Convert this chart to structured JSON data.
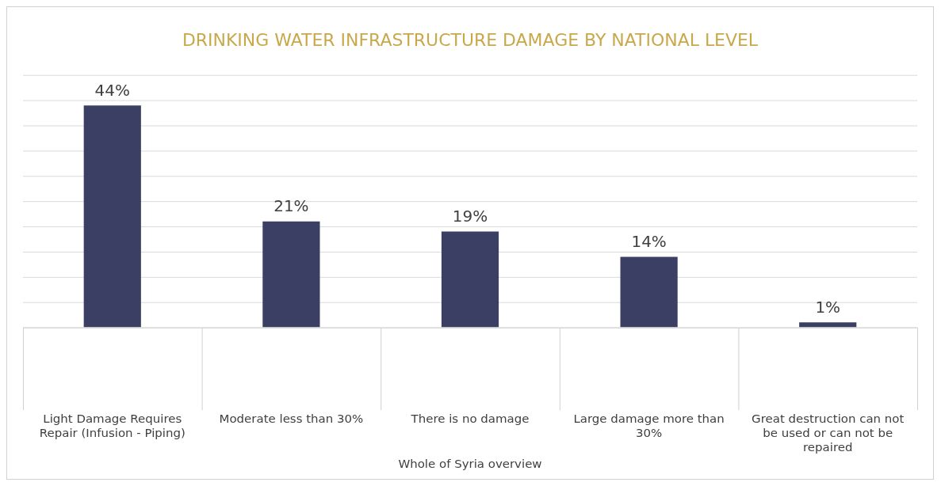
{
  "chart_data": {
    "type": "bar",
    "title": "DRINKING WATER INFRASTRUCTURE DAMAGE BY NATIONAL LEVEL",
    "xlabel": "Whole of Syria overview",
    "categories": [
      "Light Damage Requires Repair (Infusion - Piping)",
      "Moderate less than 30%",
      "There is no damage",
      "Large damage more than 30%",
      "Great destruction can not be used or can not be repaired"
    ],
    "values": [
      44,
      21,
      19,
      14,
      1
    ],
    "value_labels": [
      "44%",
      "21%",
      "19%",
      "14%",
      "1%"
    ],
    "color": "#3b3f63",
    "ylim": [
      0,
      50
    ],
    "yticks": [
      {
        "value": 0,
        "label": null
      },
      {
        "value": 5,
        "label": null
      },
      {
        "value": 10,
        "label": null
      },
      {
        "value": 15,
        "label": null
      },
      {
        "value": 20,
        "label": null
      },
      {
        "value": 25,
        "label": null
      },
      {
        "value": 30,
        "label": null
      },
      {
        "value": 35,
        "label": null
      },
      {
        "value": 40,
        "label": null
      },
      {
        "value": 45,
        "label": null
      },
      {
        "value": 50,
        "label": null
      }
    ],
    "grid": "y",
    "legend": false,
    "tick_labels": "x"
  }
}
